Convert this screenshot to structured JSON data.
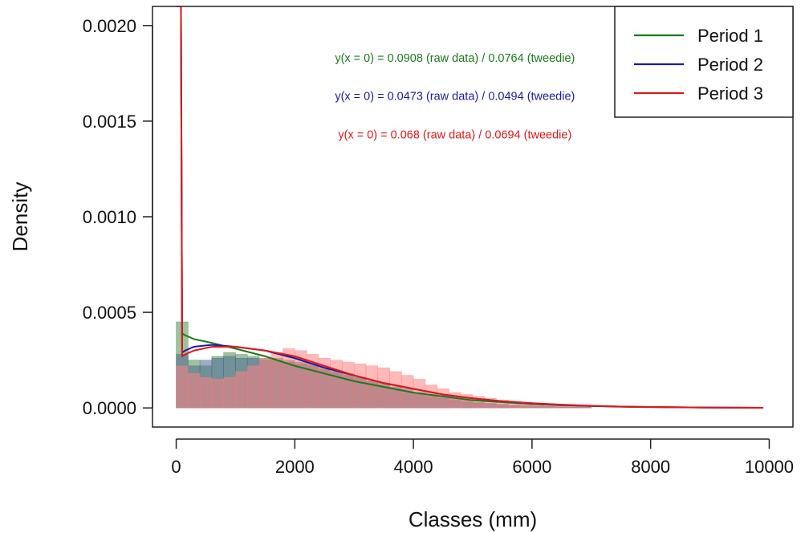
{
  "chart_data": {
    "type": "bar",
    "title": "",
    "xlabel": "Classes (mm)",
    "ylabel": "Density",
    "xlim": [
      -400,
      10400
    ],
    "ylim": [
      -0.0001,
      0.0021
    ],
    "x_ticks": [
      0,
      2000,
      4000,
      6000,
      8000,
      10000
    ],
    "x_tick_labels": [
      "0",
      "2000",
      "4000",
      "6000",
      "8000",
      "10000"
    ],
    "y_ticks": [
      0.0,
      0.0005,
      0.001,
      0.0015,
      0.002
    ],
    "y_tick_labels": [
      "0.0000",
      "0.0005",
      "0.0010",
      "0.0015",
      "0.0020"
    ],
    "bin_width": 200,
    "grid": false,
    "legend_position": "top-right",
    "series": [
      {
        "name": "Period 1",
        "color": "#1a7a1a",
        "bar_color": "#4f8f4f",
        "bars": [
          0.00045,
          0.00025,
          0.00022,
          0.00027,
          0.00029,
          0.00028,
          0.00027,
          0.00026,
          0.00026,
          0.00025,
          0.00024,
          0.00023,
          0.00021,
          0.00019,
          0.00018,
          0.00016,
          0.00014,
          0.00012,
          0.0001,
          8e-05,
          7e-05,
          6e-05,
          5e-05,
          4e-05,
          3e-05,
          2.5e-05,
          2e-05,
          1.5e-05,
          1.2e-05,
          1e-05,
          8e-06,
          6e-06,
          5e-06,
          4e-06,
          3e-06
        ],
        "curve": {
          "x": [
            0,
            80,
            100,
            150,
            300,
            600,
            1000,
            1500,
            2000,
            2500,
            3000,
            3500,
            4000,
            4500,
            5000,
            5500,
            6000,
            6500,
            7000,
            7500,
            8000,
            9000,
            9900
          ],
          "y": [
            0.0021,
            0.0021,
            0.00039,
            0.00038,
            0.00036,
            0.00034,
            0.00031,
            0.00027,
            0.00022,
            0.00018,
            0.00014,
            0.00011,
            8e-05,
            6e-05,
            4e-05,
            3e-05,
            2e-05,
            1.4e-05,
            1e-05,
            6e-06,
            4e-06,
            2e-06,
            1e-06
          ]
        }
      },
      {
        "name": "Period 2",
        "color": "#1a1aaa",
        "bar_color": "#4a6a96",
        "bars": [
          0.00028,
          0.00022,
          0.00025,
          0.00026,
          0.00027,
          0.00026,
          0.00026,
          0.00025,
          0.00025,
          0.00024,
          0.00023,
          0.00022,
          0.0002,
          0.00019,
          0.00017,
          0.00016,
          0.00014,
          0.00013,
          0.00011,
          0.0001,
          8e-05,
          7e-05,
          6e-05,
          5e-05,
          4e-05,
          3e-05,
          2.5e-05,
          2e-05,
          1.5e-05,
          1.2e-05,
          1e-05,
          8e-06,
          6e-06,
          5e-06,
          4e-06
        ],
        "curve": {
          "x": [
            0,
            80,
            100,
            150,
            300,
            600,
            1000,
            1500,
            2000,
            2500,
            3000,
            3500,
            4000,
            4500,
            5000,
            5500,
            6000,
            6500,
            7000,
            7500,
            8000,
            9000,
            9900
          ],
          "y": [
            0.0021,
            0.0021,
            0.00029,
            0.0003,
            0.00032,
            0.00033,
            0.00032,
            0.0003,
            0.00026,
            0.00021,
            0.00017,
            0.00013,
            0.0001,
            7e-05,
            5e-05,
            3.5e-05,
            2.4e-05,
            1.6e-05,
            1e-05,
            7e-06,
            5e-06,
            2e-06,
            1e-06
          ]
        }
      },
      {
        "name": "Period 3",
        "color": "#e01818",
        "bar_color": "#ff8080",
        "bars": [
          0.00022,
          0.00018,
          0.00016,
          0.00015,
          0.00016,
          0.00019,
          0.00022,
          0.00026,
          0.00029,
          0.00031,
          0.0003,
          0.00028,
          0.00026,
          0.00025,
          0.00024,
          0.00023,
          0.00022,
          0.00021,
          0.00019,
          0.00017,
          0.00015,
          0.00012,
          0.0001,
          8e-05,
          7e-05,
          6e-05,
          5e-05,
          4e-05,
          3e-05,
          2.5e-05,
          2e-05,
          1.5e-05,
          1.2e-05,
          1e-05,
          8e-06
        ],
        "curve": {
          "x": [
            0,
            80,
            100,
            150,
            300,
            600,
            1000,
            1500,
            2000,
            2500,
            3000,
            3500,
            4000,
            4500,
            5000,
            5500,
            6000,
            6500,
            7000,
            7500,
            8000,
            9000,
            9900
          ],
          "y": [
            0.0021,
            0.0021,
            0.00027,
            0.00028,
            0.0003,
            0.00032,
            0.00032,
            0.0003,
            0.00027,
            0.00022,
            0.00017,
            0.00013,
            0.0001,
            7e-05,
            5e-05,
            3.5e-05,
            2.5e-05,
            1.7e-05,
            1.1e-05,
            7e-06,
            5e-06,
            2e-06,
            1e-06
          ]
        }
      }
    ],
    "annotations": [
      {
        "text": "y(x = 0) = 0.0908 (raw data) / 0.0764 (tweedie)",
        "color": "#1a7a1a",
        "x": 4700,
        "y": 0.00181
      },
      {
        "text": "y(x = 0) = 0.0473 (raw data) / 0.0494 (tweedie)",
        "color": "#1a1aaa",
        "x": 4700,
        "y": 0.00161
      },
      {
        "text": "y(x = 0) = 0.068 (raw data) / 0.0694 (tweedie)",
        "color": "#e01818",
        "x": 4700,
        "y": 0.00141
      }
    ]
  }
}
